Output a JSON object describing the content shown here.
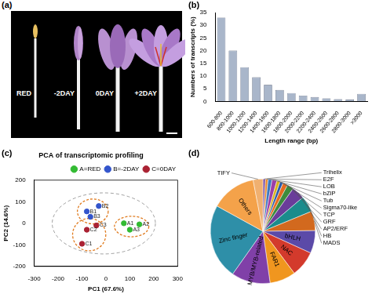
{
  "photo": {
    "panel": "(a)",
    "labels": [
      "RED",
      "-2DAY",
      "0DAY",
      "+2DAY"
    ]
  },
  "chart_data": [
    {
      "panel": "(b)",
      "type": "bar",
      "x_label": "Length range (bp)",
      "y_label": "Numbers of transcripts (%)",
      "categories": [
        "600-800",
        "800-1000",
        "1000-1200",
        "1200-1400",
        "1400-1600",
        "1600-1800",
        "1800-2000",
        "2000-2200",
        "2200-2400",
        "2400-2600",
        "2600-2800",
        "2800-3000",
        ">3000"
      ],
      "values": [
        33,
        20,
        13.5,
        9.5,
        6.5,
        4.5,
        3.3,
        2.3,
        1.7,
        1.2,
        0.9,
        0.7,
        3
      ],
      "color": "#a9b6ca",
      "ylim": [
        0,
        35
      ],
      "yticks": [
        0,
        5,
        10,
        15,
        20,
        25,
        30,
        35
      ],
      "grid": false
    },
    {
      "panel": "(c)",
      "type": "scatter",
      "title": "PCA of transcriptomic profiling",
      "x_label": "PC1 (67.6%)",
      "y_label": "PC2 (14.6%)",
      "xlim": [
        -300,
        300
      ],
      "xticks": [
        -300,
        -200,
        -100,
        0,
        100,
        200,
        300
      ],
      "ylim": [
        -200,
        200
      ],
      "yticks": [
        -200,
        -100,
        0,
        100,
        200
      ],
      "legend": "top-right",
      "grid": false,
      "series": [
        {
          "name": "A=RED",
          "color": "#33bb33",
          "points": [
            {
              "x": 75,
              "y": 0,
              "label": "A1"
            },
            {
              "x": 140,
              "y": -5,
              "label": "A2"
            },
            {
              "x": 100,
              "y": -30,
              "label": "A3"
            }
          ]
        },
        {
          "name": "B=-2DAY",
          "color": "#3355cc",
          "points": [
            {
              "x": -80,
              "y": 55,
              "label": "B1"
            },
            {
              "x": -30,
              "y": 80,
              "label": "B2"
            },
            {
              "x": -65,
              "y": 30,
              "label": "B3"
            }
          ]
        },
        {
          "name": "C=0DAY",
          "color": "#aa2233",
          "points": [
            {
              "x": -100,
              "y": -95,
              "label": "C1"
            },
            {
              "x": -80,
              "y": -30,
              "label": "C2"
            },
            {
              "x": -40,
              "y": -10,
              "label": "C3"
            }
          ]
        }
      ]
    },
    {
      "panel": "(d)",
      "type": "pie",
      "categories": [
        "Trihelix",
        "E2F",
        "LOB",
        "bZIP",
        "Tub",
        "Sigma70-like",
        "TCP",
        "GRF",
        "AP2/ERF",
        "HB",
        "MADS",
        "bHLH",
        "NAC",
        "FAR1",
        "MYB/MYB-related",
        "Zinc finger",
        "Others",
        "TIFY"
      ],
      "values": [
        0.8,
        0.8,
        1.2,
        1.5,
        1,
        1,
        1.5,
        2,
        4,
        5,
        6,
        7,
        8,
        8,
        12,
        23.2,
        14,
        3
      ],
      "colors": [
        "#7b4fa6",
        "#e8882b",
        "#3b78c2",
        "#9c3fa8",
        "#d9b31c",
        "#2a5caa",
        "#e56b1f",
        "#3d8b3d",
        "#6a3d9a",
        "#1b8c8c",
        "#d2691e",
        "#5b4aa8",
        "#d33a2c",
        "#f0961f",
        "#8040a8",
        "#2e8fa8",
        "#f4a24a",
        "#f0b070"
      ]
    }
  ]
}
